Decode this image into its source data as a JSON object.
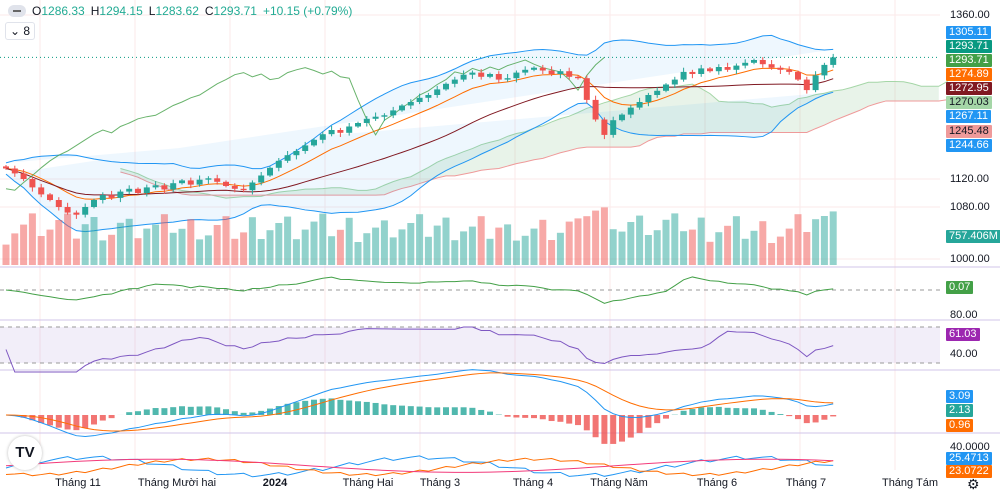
{
  "legend": {
    "o_label": "O",
    "o": "1286.33",
    "h_label": "H",
    "h": "1294.15",
    "l_label": "L",
    "l": "1283.62",
    "c_label": "C",
    "c": "1293.71",
    "change": "+10.15 (+0.79%)",
    "collapse": "8"
  },
  "price_axis": [
    {
      "label": "1360.00",
      "value": 1360
    },
    {
      "label": "1120.00",
      "value": 1120
    },
    {
      "label": "1080.00",
      "value": 1080
    },
    {
      "label": "1000.00",
      "value": 1000
    }
  ],
  "price_tags": [
    {
      "label": "1305.11",
      "color": "#2196f3"
    },
    {
      "label": "1293.71",
      "color": "#089981"
    },
    {
      "label": "1293.71",
      "color": "#43a047"
    },
    {
      "label": "1274.89",
      "color": "#ff6d00"
    },
    {
      "label": "1272.95",
      "color": "#801922"
    },
    {
      "label": "1270.03",
      "color": "#a5d6a7",
      "text": "#131722"
    },
    {
      "label": "1267.11",
      "color": "#2196f3"
    },
    {
      "label": "1245.48",
      "color": "#ef9a9a",
      "text": "#131722"
    },
    {
      "label": "1244.66",
      "color": "#2196f3"
    }
  ],
  "volume_tag": {
    "label": "757.406M",
    "color": "#26a69a"
  },
  "pane1": {
    "tag": "0.07",
    "color": "#43a047"
  },
  "rsi": {
    "tag": "61.03",
    "color": "#9c27b0",
    "upper": "80.00",
    "lower": "40.00"
  },
  "macd": {
    "tags": [
      {
        "label": "3.09",
        "color": "#2196f3"
      },
      {
        "label": "2.13",
        "color": "#26a69a"
      },
      {
        "label": "0.96",
        "color": "#ff6d00"
      }
    ]
  },
  "dmi": {
    "axis": "40.0000",
    "tags": [
      {
        "label": "25.4713",
        "color": "#2196f3"
      },
      {
        "label": "23.0722",
        "color": "#ff6d00"
      }
    ]
  },
  "time_axis": [
    {
      "label": "Tháng 11",
      "bold": false
    },
    {
      "label": "Tháng Mười hai",
      "bold": false
    },
    {
      "label": "2024",
      "bold": true
    },
    {
      "label": "Tháng Hai",
      "bold": false
    },
    {
      "label": "Tháng 3",
      "bold": false
    },
    {
      "label": "Tháng 4",
      "bold": false
    },
    {
      "label": "Tháng Năm",
      "bold": false
    },
    {
      "label": "Tháng 6",
      "bold": false
    },
    {
      "label": "Tháng 7",
      "bold": false
    },
    {
      "label": "Tháng Tám",
      "bold": false
    }
  ],
  "logo": "TV",
  "icons": {
    "settings": "gear-icon",
    "collapse": "chevron-down-icon"
  },
  "colors": {
    "up": "#26a69a",
    "down": "#ef5350"
  },
  "chart_data": {
    "type": "candlestick",
    "closes": [
      1135,
      1128,
      1120,
      1108,
      1098,
      1090,
      1080,
      1072,
      1069,
      1080,
      1090,
      1097,
      1093,
      1102,
      1106,
      1100,
      1108,
      1111,
      1105,
      1114,
      1118,
      1112,
      1119,
      1121,
      1116,
      1110,
      1106,
      1104,
      1115,
      1125,
      1136,
      1146,
      1154,
      1160,
      1168,
      1176,
      1184,
      1190,
      1186,
      1195,
      1200,
      1206,
      1209,
      1211,
      1218,
      1225,
      1230,
      1236,
      1240,
      1248,
      1256,
      1262,
      1269,
      1272,
      1266,
      1270,
      1262,
      1264,
      1272,
      1276,
      1279,
      1275,
      1270,
      1274,
      1266,
      1264,
      1233,
      1205,
      1183,
      1204,
      1212,
      1222,
      1230,
      1240,
      1246,
      1255,
      1262,
      1273,
      1270,
      1278,
      1274,
      1280,
      1276,
      1282,
      1286,
      1290,
      1284,
      1279,
      1276,
      1273,
      1262,
      1247,
      1268,
      1283,
      1293.71
    ],
    "volume_last": "757.406M",
    "ylim": [
      1000,
      1360
    ]
  }
}
